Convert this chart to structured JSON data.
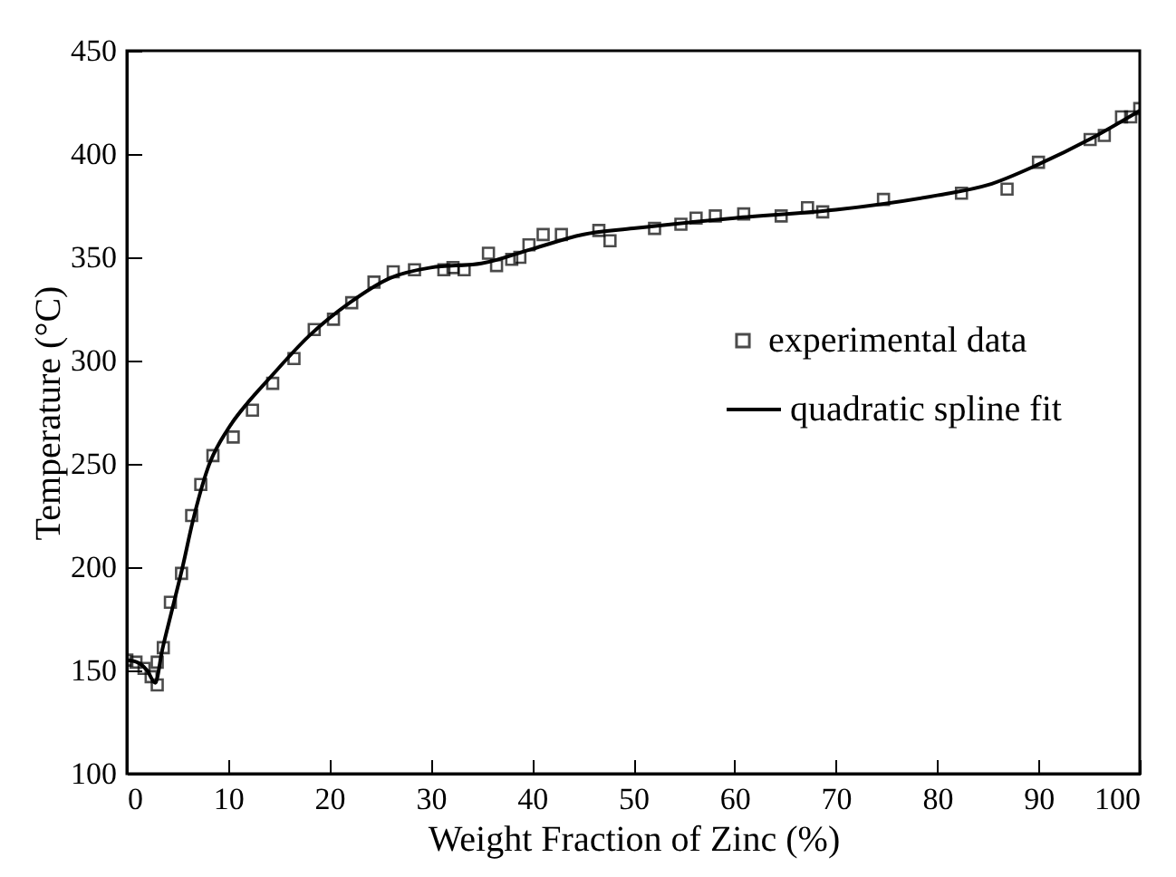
{
  "chart_data": {
    "type": "scatter",
    "xlabel": "Weight Fraction of Zinc (%)",
    "ylabel": "Temperature (°C)",
    "xlim": [
      0,
      100
    ],
    "xticks": [
      0,
      10,
      20,
      30,
      40,
      50,
      60,
      70,
      80,
      90,
      100
    ],
    "ylim": [
      100,
      450
    ],
    "yticks": [
      100,
      150,
      200,
      250,
      300,
      350,
      400,
      450
    ],
    "grid": false,
    "legend": "right",
    "series": [
      {
        "name": "experimental data",
        "marker": "square",
        "color": "#000000",
        "x": [
          0,
          0.9,
          1.7,
          2.4,
          3,
          3,
          3.6,
          4.3,
          5.4,
          6.4,
          7.3,
          8.5,
          10.5,
          12.4,
          14.4,
          16.5,
          18.5,
          20.4,
          22.2,
          24.4,
          26.3,
          28.4,
          31.3,
          32.2,
          33.3,
          35.7,
          36.5,
          38,
          38.8,
          39.7,
          41.1,
          42.9,
          46.6,
          47.7,
          52.1,
          54.7,
          56.2,
          58.1,
          60.9,
          64.6,
          67.2,
          68.7,
          74.7,
          82.4,
          86.9,
          90,
          95.1,
          96.5,
          98.2,
          99.1,
          100
        ],
        "values": [
          155,
          154,
          151,
          147,
          143,
          154,
          161,
          183,
          197,
          225,
          240,
          254,
          263,
          276,
          289,
          301,
          315,
          320,
          328,
          338,
          343,
          344,
          344,
          345,
          344,
          352,
          346,
          349,
          350,
          356,
          361,
          361,
          363,
          358,
          364,
          366,
          369,
          370,
          371,
          370,
          374,
          372,
          378,
          381,
          383,
          396,
          407,
          409,
          418,
          418,
          422
        ]
      },
      {
        "name": "quadratic spline fit",
        "type": "line",
        "color": "#000000",
        "line_style": "solid",
        "x": [
          0,
          1,
          2,
          2.8,
          3.5,
          4.5,
          5.5,
          6.5,
          8,
          10,
          12,
          14,
          18,
          22,
          26,
          30,
          35,
          40,
          45,
          50,
          60,
          70,
          80,
          85,
          90,
          95,
          100
        ],
        "values": [
          155,
          154,
          150,
          144,
          160,
          180,
          200,
          222,
          248,
          267,
          280,
          291,
          312,
          328,
          340,
          345,
          347,
          354,
          361,
          364,
          369,
          373,
          380,
          385,
          395,
          407,
          421
        ]
      }
    ]
  }
}
